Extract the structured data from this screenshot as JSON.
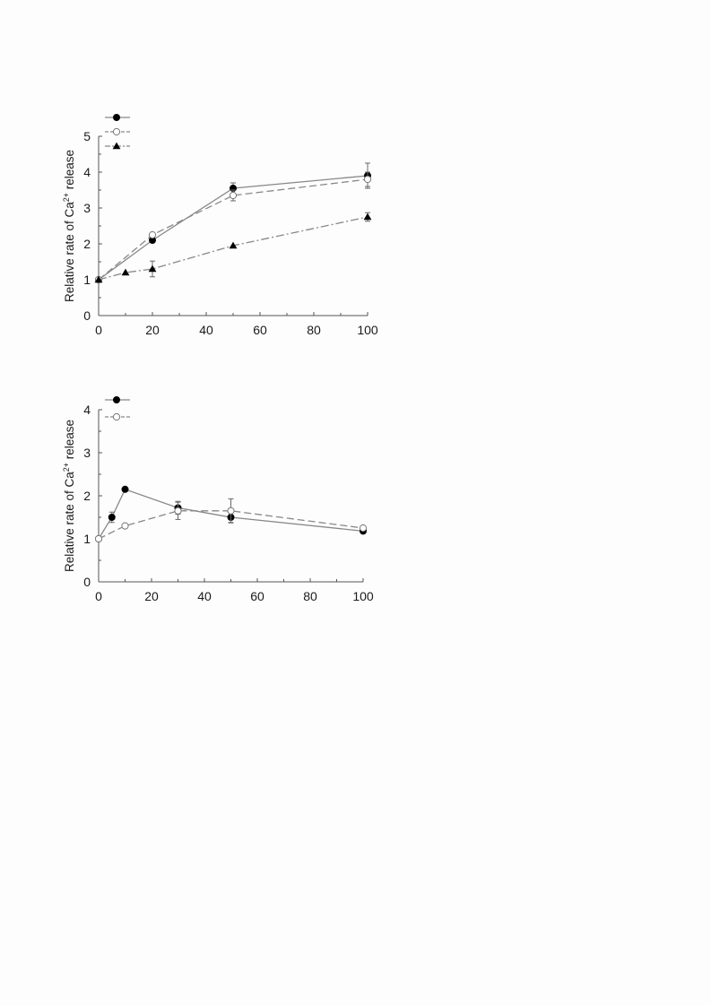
{
  "chart_data": [
    {
      "type": "line",
      "ylabel_base": "Relative rate of Ca",
      "ylabel_sup": "2+",
      "ylabel_tail": " release",
      "xlabel": "",
      "xlim": [
        0,
        100
      ],
      "ylim": [
        0,
        5
      ],
      "xticks": [
        0,
        20,
        40,
        60,
        80,
        100
      ],
      "yticks": [
        0,
        1,
        2,
        3,
        4,
        5
      ],
      "legend_position": "top-left",
      "series": [
        {
          "marker": "filled-circle",
          "line_style": "solid",
          "color": "#888888",
          "x": [
            0,
            20,
            50,
            100
          ],
          "y": [
            1.0,
            2.1,
            3.55,
            3.9
          ],
          "err": [
            0,
            0,
            0.15,
            0.35
          ]
        },
        {
          "marker": "open-circle",
          "line_style": "dashed",
          "color": "#888888",
          "x": [
            0,
            20,
            50,
            100
          ],
          "y": [
            1.0,
            2.25,
            3.35,
            3.8
          ],
          "err": [
            0,
            0,
            0.15,
            0.2
          ]
        },
        {
          "marker": "filled-triangle",
          "line_style": "dash-dot",
          "color": "#888888",
          "x": [
            0,
            10,
            20,
            50,
            100
          ],
          "y": [
            1.0,
            1.2,
            1.3,
            1.95,
            2.75
          ],
          "err": [
            0,
            0,
            0.22,
            0,
            0.12
          ]
        }
      ]
    },
    {
      "type": "line",
      "ylabel_base": "Relative rate of Ca",
      "ylabel_sup": "2+",
      "ylabel_tail": " release",
      "xlabel": "",
      "xlim": [
        0,
        100
      ],
      "ylim": [
        0,
        4
      ],
      "xticks": [
        0,
        20,
        40,
        60,
        80,
        100
      ],
      "yticks": [
        0,
        1,
        2,
        3,
        4
      ],
      "legend_position": "top-left",
      "series": [
        {
          "marker": "filled-circle",
          "line_style": "solid",
          "color": "#888888",
          "x": [
            0,
            5,
            10,
            30,
            50,
            100
          ],
          "y": [
            1.0,
            1.5,
            2.15,
            1.72,
            1.5,
            1.18
          ],
          "err": [
            0,
            0.12,
            0,
            0.15,
            0.12,
            0
          ]
        },
        {
          "marker": "open-circle",
          "line_style": "dashed",
          "color": "#888888",
          "x": [
            0,
            10,
            30,
            50,
            100
          ],
          "y": [
            1.0,
            1.3,
            1.65,
            1.65,
            1.25
          ],
          "err": [
            0,
            0,
            0.2,
            0.28,
            0
          ]
        }
      ]
    }
  ]
}
